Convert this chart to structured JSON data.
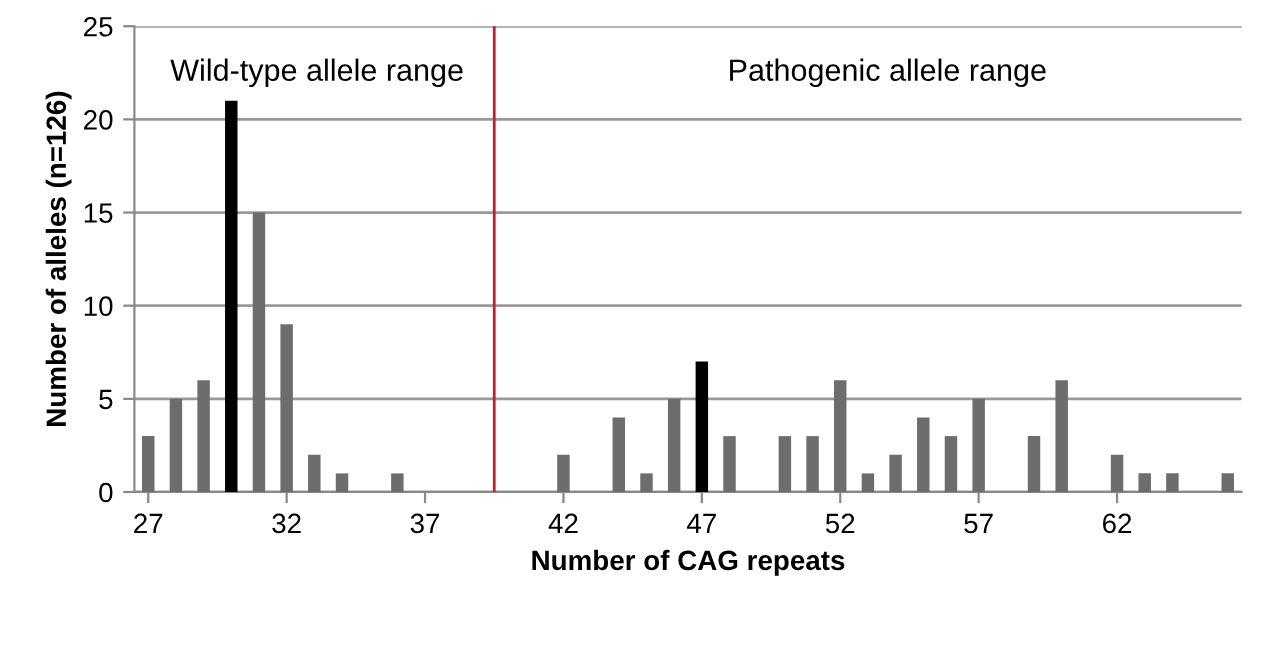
{
  "chart_data": {
    "type": "bar",
    "xlabel": "Number of CAG repeats",
    "ylabel": "Number of alleles (n=126)",
    "x": [
      27,
      28,
      29,
      30,
      31,
      32,
      33,
      34,
      35,
      36,
      37,
      38,
      39,
      40,
      41,
      42,
      43,
      44,
      45,
      46,
      47,
      48,
      49,
      50,
      51,
      52,
      53,
      54,
      55,
      56,
      57,
      58,
      59,
      60,
      61,
      62,
      63,
      64,
      65,
      66
    ],
    "values": [
      3,
      5,
      6,
      21,
      15,
      9,
      2,
      1,
      0,
      1,
      0,
      0,
      0,
      0,
      0,
      2,
      0,
      4,
      1,
      5,
      7,
      3,
      0,
      3,
      3,
      6,
      1,
      2,
      4,
      3,
      5,
      0,
      3,
      6,
      0,
      2,
      1,
      1,
      0,
      1
    ],
    "colors": [
      "#6d6d6d",
      "#6d6d6d",
      "#6d6d6d",
      "#000000",
      "#6d6d6d",
      "#6d6d6d",
      "#6d6d6d",
      "#6d6d6d",
      "#6d6d6d",
      "#6d6d6d",
      "#6d6d6d",
      "#6d6d6d",
      "#6d6d6d",
      "#6d6d6d",
      "#6d6d6d",
      "#6d6d6d",
      "#6d6d6d",
      "#6d6d6d",
      "#6d6d6d",
      "#6d6d6d",
      "#000000",
      "#6d6d6d",
      "#6d6d6d",
      "#6d6d6d",
      "#6d6d6d",
      "#6d6d6d",
      "#6d6d6d",
      "#6d6d6d",
      "#6d6d6d",
      "#6d6d6d",
      "#6d6d6d",
      "#6d6d6d",
      "#6d6d6d",
      "#6d6d6d",
      "#6d6d6d",
      "#6d6d6d",
      "#6d6d6d",
      "#6d6d6d",
      "#6d6d6d",
      "#6d6d6d"
    ],
    "xlim": [
      26.5,
      66.5
    ],
    "xticks": [
      27,
      32,
      37,
      42,
      47,
      52,
      57,
      62
    ],
    "ylim": [
      0,
      25
    ],
    "yticks": [
      0,
      5,
      10,
      15,
      20,
      25
    ],
    "grid": "y",
    "ref_lines": [
      {
        "axis": "x",
        "value": 39.5,
        "color": "#c0202a"
      }
    ],
    "annotations": [
      "Wild-type allele range",
      "Pathogenic allele range"
    ]
  }
}
